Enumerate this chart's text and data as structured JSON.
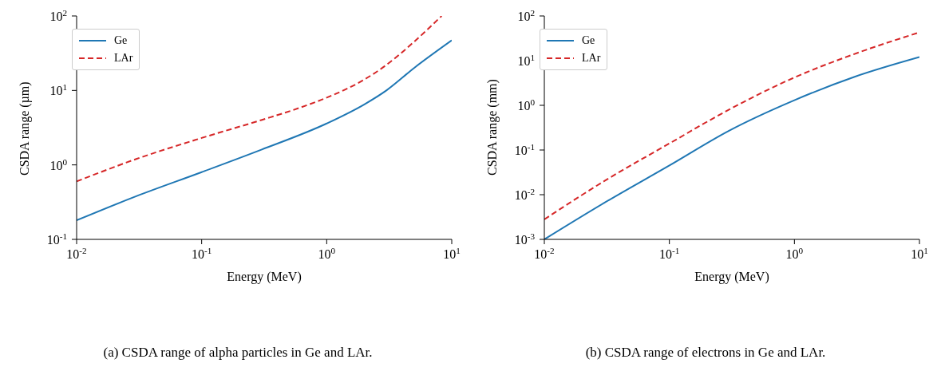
{
  "chart_data": [
    {
      "type": "line",
      "xlabel": "Energy (MeV)",
      "ylabel": "CSDA range (µm)",
      "log": "xy",
      "legend": "top left",
      "xlim": [
        0.01,
        10
      ],
      "ylim": [
        0.1,
        100
      ],
      "xticks": [
        {
          "value": 0.01,
          "label": "10$^{-2}$"
        },
        {
          "value": 0.1,
          "label": "10$^{-1}$"
        },
        {
          "value": 1,
          "label": "10$^{0}$"
        },
        {
          "value": 10,
          "label": "10$^{1}$"
        }
      ],
      "yticks": [
        {
          "value": 0.1,
          "label": "10$^{-1}$"
        },
        {
          "value": 1,
          "label": "10$^{0}$"
        },
        {
          "value": 10,
          "label": "10$^{1}$"
        },
        {
          "value": 100,
          "label": "10$^{2}$"
        }
      ],
      "annotations": [
        "(a) CSDA range of alpha particles in Ge and LAr."
      ],
      "series": [
        {
          "name": "Ge",
          "color": "#1f77b4",
          "line_style": "solid",
          "x": [
            0.01,
            0.03,
            0.1,
            0.3,
            1,
            2,
            3,
            5,
            10
          ],
          "values": [
            0.18,
            0.38,
            0.8,
            1.6,
            3.6,
            6.5,
            10,
            20,
            47
          ]
        },
        {
          "name": "LAr",
          "color": "#d62728",
          "line_style": "dashed",
          "x": [
            0.01,
            0.03,
            0.1,
            0.3,
            0.6,
            1,
            2,
            3,
            5,
            8.3
          ],
          "values": [
            0.6,
            1.2,
            2.3,
            4.0,
            5.8,
            8,
            14,
            22,
            45,
            100
          ]
        }
      ]
    },
    {
      "type": "line",
      "xlabel": "Energy (MeV)",
      "ylabel": "CSDA range (mm)",
      "log": "xy",
      "legend": "top left",
      "xlim": [
        0.01,
        10
      ],
      "ylim": [
        0.001,
        100
      ],
      "xticks": [
        {
          "value": 0.01,
          "label": "10$^{-2}$"
        },
        {
          "value": 0.1,
          "label": "10$^{-1}$"
        },
        {
          "value": 1,
          "label": "10$^{0}$"
        },
        {
          "value": 10,
          "label": "10$^{1}$"
        }
      ],
      "yticks": [
        {
          "value": 0.001,
          "label": "10$^{-3}$"
        },
        {
          "value": 0.01,
          "label": "10$^{-2}$"
        },
        {
          "value": 0.1,
          "label": "10$^{-1}$"
        },
        {
          "value": 1,
          "label": "10$^{0}$"
        },
        {
          "value": 10,
          "label": "10$^{1}$"
        },
        {
          "value": 100,
          "label": "10$^{2}$"
        }
      ],
      "annotations": [
        "(b) CSDA range of electrons in Ge and LAr."
      ],
      "series": [
        {
          "name": "Ge",
          "color": "#1f77b4",
          "line_style": "solid",
          "x": [
            0.01,
            0.03,
            0.1,
            0.3,
            1,
            3,
            10
          ],
          "values": [
            0.001,
            0.0065,
            0.045,
            0.27,
            1.3,
            4.3,
            12
          ]
        },
        {
          "name": "LAr",
          "color": "#d62728",
          "line_style": "dashed",
          "x": [
            0.01,
            0.03,
            0.1,
            0.3,
            1,
            3,
            10
          ],
          "values": [
            0.0028,
            0.02,
            0.14,
            0.8,
            4.2,
            14,
            43
          ]
        }
      ]
    }
  ]
}
